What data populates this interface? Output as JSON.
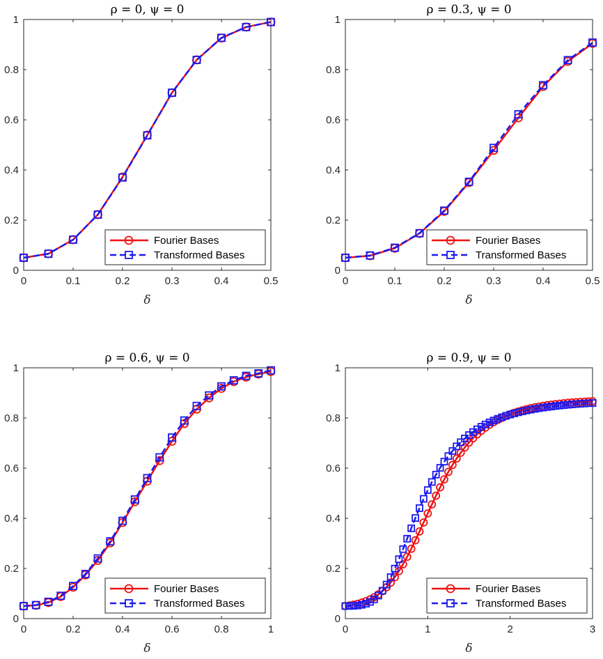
{
  "figure": {
    "legend": [
      "Fourier Bases",
      "Transformed Bases"
    ],
    "series_colors": {
      "fourier": "#ee1111",
      "transformed": "#1a1aee"
    }
  },
  "chart_data": [
    {
      "type": "line",
      "title": "ρ = 0, ψ = 0",
      "xlabel": "δ",
      "ylabel": "",
      "xlim": [
        0,
        0.5
      ],
      "ylim": [
        0,
        1
      ],
      "xticks": [
        "0",
        "0.1",
        "0.2",
        "0.3",
        "0.4",
        "0.5"
      ],
      "yticks": [
        "0",
        "0.2",
        "0.4",
        "0.6",
        "0.8",
        "1"
      ],
      "x": [
        0,
        0.05,
        0.1,
        0.15,
        0.2,
        0.25,
        0.3,
        0.35,
        0.4,
        0.45,
        0.5
      ],
      "series": [
        {
          "name": "Fourier Bases",
          "values": [
            0.05,
            0.066,
            0.122,
            0.222,
            0.372,
            0.539,
            0.708,
            0.839,
            0.926,
            0.97,
            0.99
          ]
        },
        {
          "name": "Transformed Bases",
          "values": [
            0.05,
            0.066,
            0.122,
            0.222,
            0.37,
            0.538,
            0.708,
            0.839,
            0.927,
            0.97,
            0.99
          ]
        }
      ],
      "legend_position": "bottom-right"
    },
    {
      "type": "line",
      "title": "ρ = 0.3, ψ = 0",
      "xlabel": "δ",
      "ylabel": "",
      "xlim": [
        0,
        0.5
      ],
      "ylim": [
        0,
        1
      ],
      "xticks": [
        "0",
        "0.1",
        "0.2",
        "0.3",
        "0.4",
        "0.5"
      ],
      "yticks": [
        "0",
        "0.2",
        "0.4",
        "0.6",
        "0.8",
        "1"
      ],
      "x": [
        0,
        0.05,
        0.1,
        0.15,
        0.2,
        0.25,
        0.3,
        0.35,
        0.4,
        0.45,
        0.5
      ],
      "series": [
        {
          "name": "Fourier Bases",
          "values": [
            0.05,
            0.058,
            0.088,
            0.147,
            0.235,
            0.35,
            0.478,
            0.608,
            0.733,
            0.833,
            0.905
          ]
        },
        {
          "name": "Transformed Bases",
          "values": [
            0.05,
            0.059,
            0.09,
            0.148,
            0.238,
            0.353,
            0.488,
            0.622,
            0.738,
            0.838,
            0.908
          ]
        }
      ],
      "legend_position": "bottom-right"
    },
    {
      "type": "line",
      "title": "ρ = 0.6, ψ = 0",
      "xlabel": "δ",
      "ylabel": "",
      "xlim": [
        0,
        1
      ],
      "ylim": [
        0,
        1
      ],
      "xticks": [
        "0",
        "0.2",
        "0.4",
        "0.6",
        "0.8",
        "1"
      ],
      "yticks": [
        "0",
        "0.2",
        "0.4",
        "0.6",
        "0.8",
        "1"
      ],
      "x": [
        0,
        0.05,
        0.1,
        0.15,
        0.2,
        0.25,
        0.3,
        0.35,
        0.4,
        0.45,
        0.5,
        0.55,
        0.6,
        0.65,
        0.7,
        0.75,
        0.8,
        0.85,
        0.9,
        0.95,
        1
      ],
      "series": [
        {
          "name": "Fourier Bases",
          "values": [
            0.05,
            0.053,
            0.064,
            0.088,
            0.125,
            0.174,
            0.232,
            0.302,
            0.383,
            0.466,
            0.548,
            0.63,
            0.707,
            0.778,
            0.835,
            0.88,
            0.918,
            0.945,
            0.963,
            0.975,
            0.985
          ]
        },
        {
          "name": "Transformed Bases",
          "values": [
            0.05,
            0.054,
            0.067,
            0.091,
            0.13,
            0.178,
            0.24,
            0.308,
            0.39,
            0.475,
            0.56,
            0.643,
            0.722,
            0.79,
            0.848,
            0.89,
            0.926,
            0.95,
            0.968,
            0.978,
            0.99
          ]
        }
      ],
      "legend_position": "bottom-right"
    },
    {
      "type": "line",
      "title": "ρ = 0.9, ψ = 0",
      "xlabel": "δ",
      "ylabel": "",
      "xlim": [
        0,
        3
      ],
      "ylim": [
        0,
        1
      ],
      "xticks": [
        "0",
        "1",
        "2",
        "3"
      ],
      "yticks": [
        "0",
        "0.2",
        "0.4",
        "0.6",
        "0.8",
        "1"
      ],
      "x": [
        0,
        0.05,
        0.1,
        0.15,
        0.2,
        0.25,
        0.3,
        0.35,
        0.4,
        0.45,
        0.5,
        0.55,
        0.6,
        0.65,
        0.7,
        0.75,
        0.8,
        0.85,
        0.9,
        0.95,
        1,
        1.05,
        1.1,
        1.15,
        1.2,
        1.25,
        1.3,
        1.35,
        1.4,
        1.45,
        1.5,
        1.55,
        1.6,
        1.65,
        1.7,
        1.75,
        1.8,
        1.85,
        1.9,
        1.95,
        2,
        2.05,
        2.1,
        2.15,
        2.2,
        2.25,
        2.3,
        2.35,
        2.4,
        2.45,
        2.5,
        2.55,
        2.6,
        2.65,
        2.7,
        2.75,
        2.8,
        2.85,
        2.9,
        2.95,
        3
      ],
      "series": [
        {
          "name": "Fourier Bases",
          "values": [
            0.05,
            0.0524,
            0.0554,
            0.0591,
            0.0637,
            0.0694,
            0.0766,
            0.0855,
            0.0963,
            0.1094,
            0.1251,
            0.1436,
            0.165,
            0.1893,
            0.2165,
            0.2463,
            0.2784,
            0.3123,
            0.3475,
            0.3834,
            0.4195,
            0.4552,
            0.49,
            0.5234,
            0.5552,
            0.585,
            0.6127,
            0.6382,
            0.6615,
            0.6827,
            0.702,
            0.7193,
            0.735,
            0.7491,
            0.7617,
            0.7731,
            0.7833,
            0.7924,
            0.8006,
            0.808,
            0.8145,
            0.8205,
            0.8258,
            0.8306,
            0.8349,
            0.8388,
            0.8423,
            0.8454,
            0.8483,
            0.8508,
            0.8531,
            0.8552,
            0.857,
            0.8587,
            0.8602,
            0.8616,
            0.8628,
            0.8639,
            0.8649,
            0.8658,
            0.8666
          ]
        },
        {
          "name": "Transformed Bases",
          "values": [
            0.05,
            0.0502,
            0.0509,
            0.0523,
            0.055,
            0.0594,
            0.0665,
            0.077,
            0.0917,
            0.1112,
            0.1358,
            0.1653,
            0.1993,
            0.2369,
            0.277,
            0.3185,
            0.3602,
            0.4011,
            0.4405,
            0.4777,
            0.5125,
            0.5447,
            0.5742,
            0.6012,
            0.6258,
            0.6482,
            0.6684,
            0.6867,
            0.7033,
            0.7183,
            0.7318,
            0.744,
            0.7551,
            0.7651,
            0.7742,
            0.7824,
            0.7899,
            0.7967,
            0.8029,
            0.8085,
            0.8136,
            0.8183,
            0.8225,
            0.8264,
            0.83,
            0.8332,
            0.8362,
            0.8389,
            0.8414,
            0.8437,
            0.8458,
            0.8478,
            0.8495,
            0.8512,
            0.8527,
            0.8541,
            0.8554,
            0.8566,
            0.8576,
            0.8587,
            0.8596
          ]
        }
      ],
      "legend_position": "bottom-right"
    }
  ]
}
